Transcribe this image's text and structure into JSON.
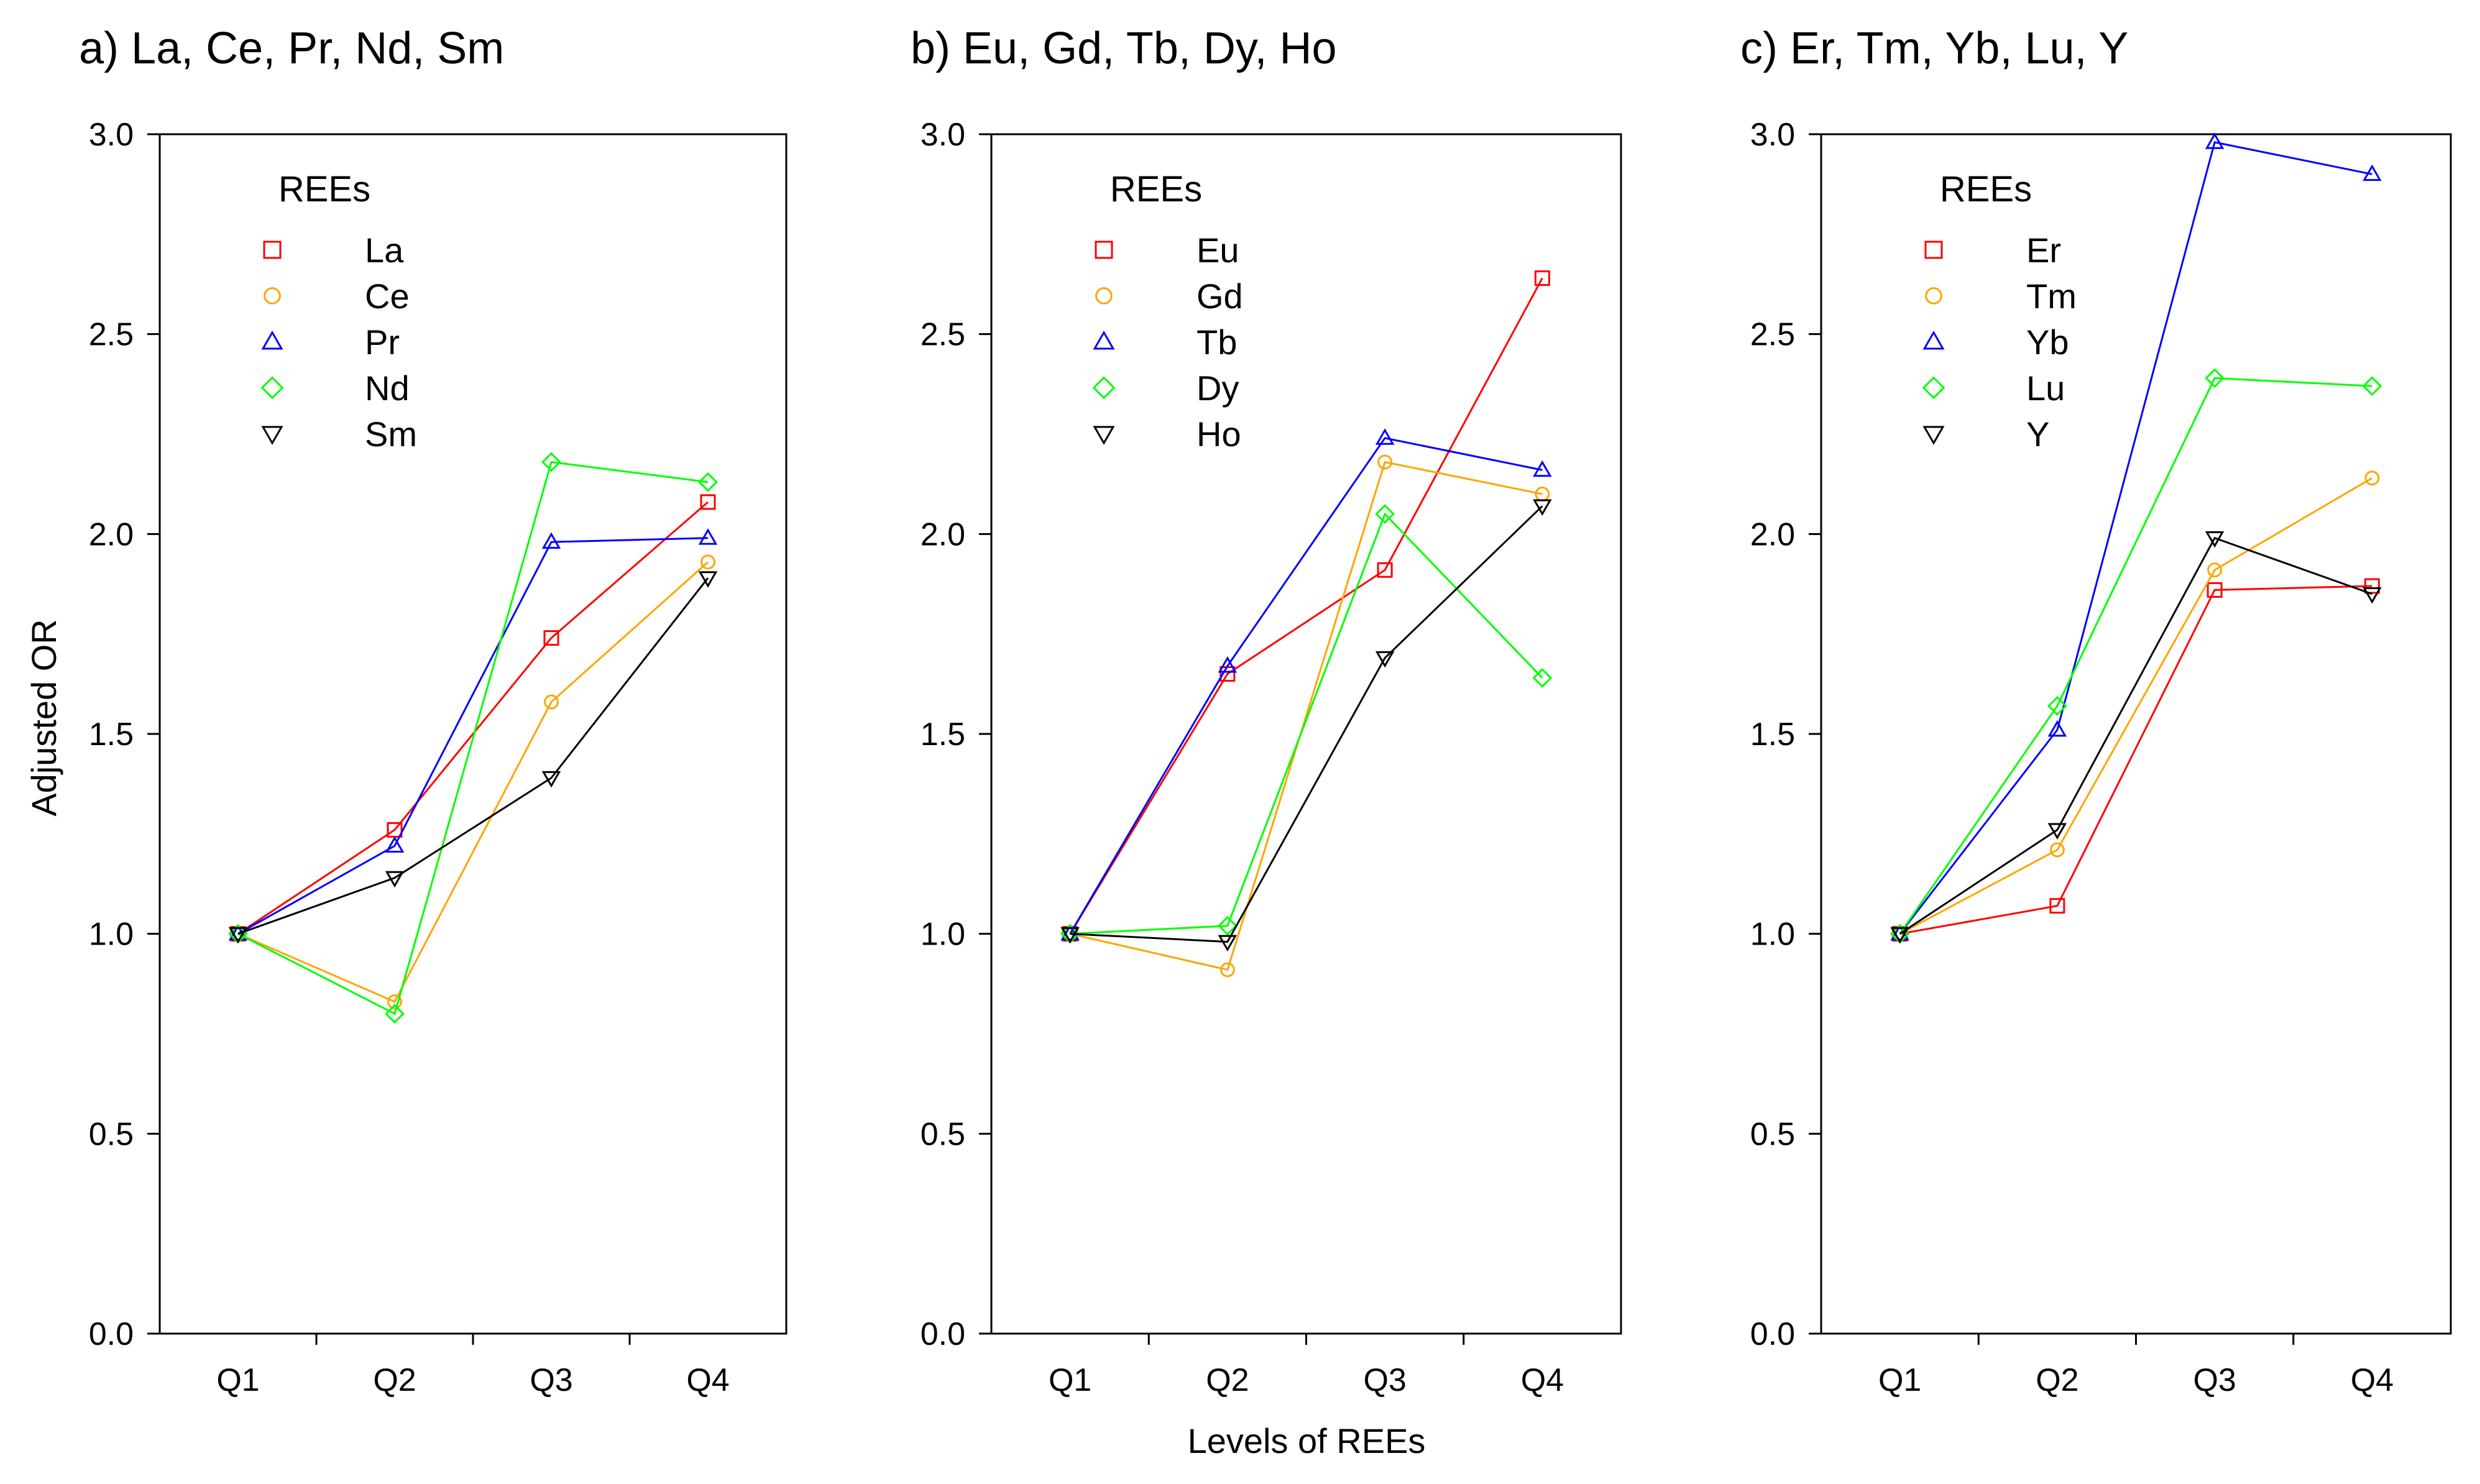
{
  "figure": {
    "ylabel": "Adjusted OR",
    "xlabel": "Levels of REEs"
  },
  "chart_data": [
    {
      "type": "line",
      "title": "a) La, Ce, Pr, Nd, Sm",
      "ylabel": "Adjusted OR",
      "xlabel": "",
      "categories": [
        "Q1",
        "Q2",
        "Q3",
        "Q4"
      ],
      "ylim": [
        0,
        3
      ],
      "yticks": [
        "0.0",
        "0.5",
        "1.0",
        "1.5",
        "2.0",
        "2.5",
        "3.0"
      ],
      "legend_title": "REEs",
      "legend_position": "top-left",
      "series": [
        {
          "name": "La",
          "marker": "square",
          "color": "#ff0000",
          "values": [
            1.0,
            1.26,
            1.74,
            2.08
          ]
        },
        {
          "name": "Ce",
          "marker": "circle",
          "color": "#ffa500",
          "values": [
            1.0,
            0.83,
            1.58,
            1.93
          ]
        },
        {
          "name": "Pr",
          "marker": "triangle-up",
          "color": "#0000ff",
          "values": [
            1.0,
            1.22,
            1.98,
            1.99
          ]
        },
        {
          "name": "Nd",
          "marker": "diamond",
          "color": "#00ff00",
          "values": [
            1.0,
            0.8,
            2.18,
            2.13
          ]
        },
        {
          "name": "Sm",
          "marker": "triangle-down",
          "color": "#000000",
          "values": [
            1.0,
            1.14,
            1.39,
            1.89
          ]
        }
      ]
    },
    {
      "type": "line",
      "title": "b) Eu, Gd, Tb, Dy, Ho",
      "ylabel": "",
      "xlabel": "Levels of REEs",
      "categories": [
        "Q1",
        "Q2",
        "Q3",
        "Q4"
      ],
      "ylim": [
        0,
        3
      ],
      "yticks": [
        "0.0",
        "0.5",
        "1.0",
        "1.5",
        "2.0",
        "2.5",
        "3.0"
      ],
      "legend_title": "REEs",
      "legend_position": "top-left",
      "series": [
        {
          "name": "Eu",
          "marker": "square",
          "color": "#ff0000",
          "values": [
            1.0,
            1.65,
            1.91,
            2.64
          ]
        },
        {
          "name": "Gd",
          "marker": "circle",
          "color": "#ffa500",
          "values": [
            1.0,
            0.91,
            2.18,
            2.1
          ]
        },
        {
          "name": "Tb",
          "marker": "triangle-up",
          "color": "#0000ff",
          "values": [
            1.0,
            1.67,
            2.24,
            2.16
          ]
        },
        {
          "name": "Dy",
          "marker": "diamond",
          "color": "#00ff00",
          "values": [
            1.0,
            1.02,
            2.05,
            1.64
          ]
        },
        {
          "name": "Ho",
          "marker": "triangle-down",
          "color": "#000000",
          "values": [
            1.0,
            0.98,
            1.69,
            2.07
          ]
        }
      ]
    },
    {
      "type": "line",
      "title": "c) Er, Tm, Yb, Lu, Y",
      "ylabel": "",
      "xlabel": "",
      "categories": [
        "Q1",
        "Q2",
        "Q3",
        "Q4"
      ],
      "ylim": [
        0,
        3
      ],
      "yticks": [
        "0.0",
        "0.5",
        "1.0",
        "1.5",
        "2.0",
        "2.5",
        "3.0"
      ],
      "legend_title": "REEs",
      "legend_position": "top-left",
      "series": [
        {
          "name": "Er",
          "marker": "square",
          "color": "#ff0000",
          "values": [
            1.0,
            1.07,
            1.86,
            1.87
          ]
        },
        {
          "name": "Tm",
          "marker": "circle",
          "color": "#ffa500",
          "values": [
            1.0,
            1.21,
            1.91,
            2.14
          ]
        },
        {
          "name": "Yb",
          "marker": "triangle-up",
          "color": "#0000ff",
          "values": [
            1.0,
            1.51,
            2.98,
            2.9
          ]
        },
        {
          "name": "Lu",
          "marker": "diamond",
          "color": "#00ff00",
          "values": [
            1.0,
            1.57,
            2.39,
            2.37
          ]
        },
        {
          "name": "Y",
          "marker": "triangle-down",
          "color": "#000000",
          "values": [
            1.0,
            1.26,
            1.99,
            1.85
          ]
        }
      ]
    }
  ]
}
